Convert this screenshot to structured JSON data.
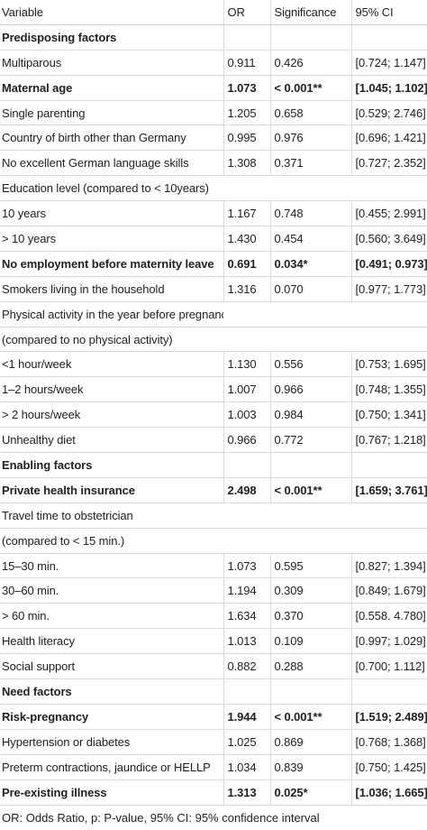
{
  "headers": {
    "variable": "Variable",
    "or": "OR",
    "significance": "Significance",
    "ci": "95% CI"
  },
  "rows": [
    {
      "type": "section",
      "label": "Predisposing factors"
    },
    {
      "type": "data",
      "label": "Multiparous",
      "or": "0.911",
      "sig": "0.426",
      "ci": "[0.724; 1.147]",
      "bold": false
    },
    {
      "type": "data",
      "label": "Maternal age",
      "or": "1.073",
      "sig": "< 0.001**",
      "ci": "[1.045; 1.102]",
      "bold": true
    },
    {
      "type": "data",
      "label": "Single parenting",
      "or": "1.205",
      "sig": "0.658",
      "ci": "[0.529; 2.746]",
      "bold": false
    },
    {
      "type": "data",
      "label": "Country of birth other than Germany",
      "or": "0.995",
      "sig": "0.976",
      "ci": "[0.696; 1.421]",
      "bold": false
    },
    {
      "type": "data",
      "label": "No excellent German language skills",
      "or": "1.308",
      "sig": "0.371",
      "ci": "[0.727; 2.352]",
      "bold": false
    },
    {
      "type": "sub",
      "label": "Education level (compared to < 10years)"
    },
    {
      "type": "data",
      "label": "10 years",
      "or": "1.167",
      "sig": "0.748",
      "ci": "[0.455; 2.991]",
      "bold": false
    },
    {
      "type": "data",
      "label": "> 10 years",
      "or": "1.430",
      "sig": "0.454",
      "ci": "[0.560; 3.649]",
      "bold": false
    },
    {
      "type": "data",
      "label": "No employment before maternity leave",
      "or": "0.691",
      "sig": "0.034*",
      "ci": "[0.491; 0.973]",
      "bold": true
    },
    {
      "type": "data",
      "label": "Smokers living in the household",
      "or": "1.316",
      "sig": "0.070",
      "ci": "[0.977; 1.773]",
      "bold": false
    },
    {
      "type": "sub",
      "label": "Physical activity in the year before pregnancy"
    },
    {
      "type": "sub",
      "label": "(compared to no physical activity)"
    },
    {
      "type": "data",
      "label": "<1 hour/week",
      "or": "1.130",
      "sig": "0.556",
      "ci": "[0.753; 1.695]",
      "bold": false
    },
    {
      "type": "data",
      "label": "1–2 hours/week",
      "or": "1.007",
      "sig": "0.966",
      "ci": "[0.748; 1.355]",
      "bold": false
    },
    {
      "type": "data",
      "label": "> 2 hours/week",
      "or": "1.003",
      "sig": "0.984",
      "ci": "[0.750; 1.341]",
      "bold": false
    },
    {
      "type": "data",
      "label": "Unhealthy diet",
      "or": "0.966",
      "sig": "0.772",
      "ci": "[0.767; 1.218]",
      "bold": false
    },
    {
      "type": "section",
      "label": "Enabling factors"
    },
    {
      "type": "data",
      "label": "Private health insurance",
      "or": "2.498",
      "sig": "< 0.001**",
      "ci": "[1.659; 3.761]",
      "bold": true
    },
    {
      "type": "sub",
      "label": "Travel time to obstetrician"
    },
    {
      "type": "sub",
      "label": "(compared to < 15 min.)"
    },
    {
      "type": "data",
      "label": "15–30 min.",
      "or": "1.073",
      "sig": "0.595",
      "ci": "[0.827; 1.394]",
      "bold": false
    },
    {
      "type": "data",
      "label": "30–60 min.",
      "or": "1.194",
      "sig": "0.309",
      "ci": "[0.849; 1.679]",
      "bold": false
    },
    {
      "type": "data",
      "label": "> 60 min.",
      "or": "1.634",
      "sig": "0.370",
      "ci": "[0.558. 4.780]",
      "bold": false
    },
    {
      "type": "data",
      "label": "Health literacy",
      "or": "1.013",
      "sig": "0.109",
      "ci": "[0.997; 1.029]",
      "bold": false
    },
    {
      "type": "data",
      "label": "Social support",
      "or": "0.882",
      "sig": "0.288",
      "ci": "[0.700; 1.112]",
      "bold": false
    },
    {
      "type": "section",
      "label": "Need factors"
    },
    {
      "type": "data",
      "label": "Risk-pregnancy",
      "or": "1.944",
      "sig": "< 0.001**",
      "ci": "[1.519; 2.489]",
      "bold": true
    },
    {
      "type": "data",
      "label": "Hypertension or diabetes",
      "or": "1.025",
      "sig": "0.869",
      "ci": "[0.768; 1.368]",
      "bold": false
    },
    {
      "type": "data",
      "label": "Preterm contractions, jaundice or HELLP",
      "or": "1.034",
      "sig": "0.839",
      "ci": "[0.750; 1.425]",
      "bold": false
    },
    {
      "type": "data",
      "label": "Pre-existing illness",
      "or": "1.313",
      "sig": "0.025*",
      "ci": "[1.036; 1.665]",
      "bold": true
    }
  ],
  "footnote": "OR: Odds Ratio, p: P-value, 95% CI: 95% confidence interval"
}
